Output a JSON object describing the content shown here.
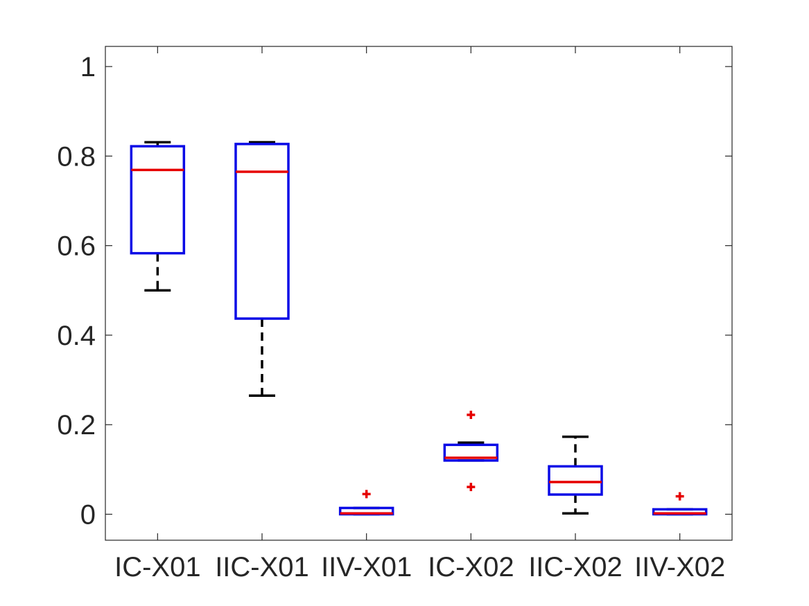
{
  "chart_data": {
    "type": "box",
    "categories": [
      "IC-X01",
      "IIC-X01",
      "IIV-X01",
      "IC-X02",
      "IIC-X02",
      "IIV-X02"
    ],
    "boxes": [
      {
        "whisker_low": 0.5,
        "q1": 0.583,
        "median": 0.769,
        "q3": 0.822,
        "whisker_high": 0.831,
        "outliers": []
      },
      {
        "whisker_low": 0.265,
        "q1": 0.437,
        "median": 0.765,
        "q3": 0.827,
        "whisker_high": 0.831,
        "outliers": []
      },
      {
        "whisker_low": 0.0,
        "q1": 0.0,
        "median": 0.002,
        "q3": 0.014,
        "whisker_high": 0.014,
        "outliers": [
          0.045
        ]
      },
      {
        "whisker_low": 0.12,
        "q1": 0.12,
        "median": 0.126,
        "q3": 0.155,
        "whisker_high": 0.16,
        "outliers": [
          0.222,
          0.061
        ]
      },
      {
        "whisker_low": 0.002,
        "q1": 0.044,
        "median": 0.072,
        "q3": 0.107,
        "whisker_high": 0.173,
        "outliers": []
      },
      {
        "whisker_low": 0.0,
        "q1": 0.0,
        "median": 0.002,
        "q3": 0.011,
        "whisker_high": 0.011,
        "outliers": [
          0.04
        ]
      }
    ],
    "title": "",
    "xlabel": "",
    "ylabel": "",
    "ylim": [
      -0.058,
      1.045
    ],
    "yticks": [
      0,
      0.2,
      0.4,
      0.6,
      0.8,
      1
    ],
    "ytick_labels": [
      "0",
      "0.2",
      "0.4",
      "0.6",
      "0.8",
      "1"
    ],
    "grid": false,
    "colors": {
      "box": "#0a0ae6",
      "median": "#e60000",
      "whisker": "#000000",
      "outlier": "#e60000",
      "axis": "#262626"
    }
  }
}
